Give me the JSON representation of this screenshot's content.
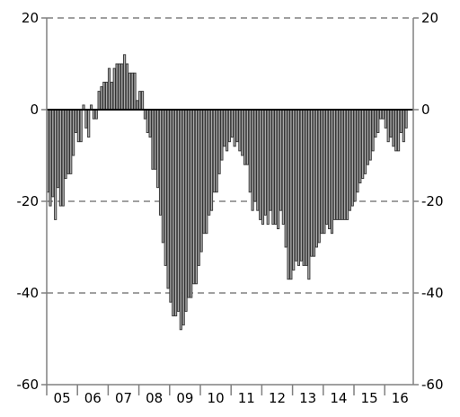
{
  "chart_data": {
    "type": "bar",
    "title": "",
    "xlabel": "",
    "ylabel": "",
    "ylim": [
      -60,
      20
    ],
    "y_ticks": [
      20,
      0,
      -20,
      -40,
      -60
    ],
    "y_tick_labels": [
      "20",
      "0",
      "-20",
      "-40",
      "-60"
    ],
    "dual_y_axis": true,
    "grid": "dashed horizontal at -40, -20, 20",
    "legend": "none",
    "x_tick_labels": [
      "05",
      "06",
      "07",
      "08",
      "09",
      "10",
      "11",
      "12",
      "13",
      "14",
      "15",
      "16"
    ],
    "periods_per_year": 12,
    "x_start_year": "05",
    "colors": {
      "bar_fill": "#ababab",
      "bar_stroke": "#333333",
      "grid": "#808080",
      "zero_line": "#000000",
      "frame": "#808080"
    },
    "values": [
      -18,
      -21,
      -19,
      -24,
      -17,
      -21,
      -21,
      -15,
      -14,
      -14,
      -10,
      -5,
      -7,
      -7,
      1,
      -4,
      -6,
      1,
      -2,
      -2,
      4,
      5,
      6,
      6,
      9,
      6,
      9,
      10,
      10,
      10,
      12,
      10,
      8,
      8,
      8,
      2,
      4,
      4,
      -2,
      -5,
      -6,
      -13,
      -13,
      -17,
      -23,
      -29,
      -34,
      -39,
      -42,
      -45,
      -45,
      -44,
      -48,
      -47,
      -44,
      -41,
      -41,
      -38,
      -38,
      -34,
      -31,
      -27,
      -27,
      -23,
      -22,
      -18,
      -18,
      -14,
      -11,
      -8,
      -9,
      -7,
      -6,
      -8,
      -7,
      -9,
      -10,
      -12,
      -12,
      -18,
      -22,
      -20,
      -22,
      -24,
      -25,
      -23,
      -25,
      -22,
      -25,
      -25,
      -26,
      -22,
      -25,
      -30,
      -37,
      -37,
      -35,
      -33,
      -34,
      -33,
      -34,
      -34,
      -37,
      -32,
      -32,
      -30,
      -29,
      -27,
      -27,
      -25,
      -26,
      -27,
      -24,
      -24,
      -24,
      -24,
      -24,
      -24,
      -22,
      -21,
      -20,
      -18,
      -16,
      -15,
      -14,
      -12,
      -11,
      -9,
      -6,
      -5,
      -2,
      -2,
      -4,
      -7,
      -6,
      -8,
      -9,
      -9,
      -5,
      -7,
      -4
    ]
  }
}
